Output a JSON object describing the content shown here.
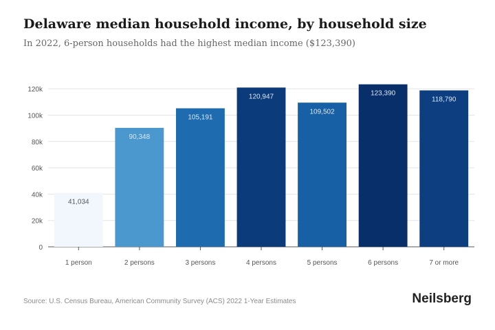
{
  "chart_data": {
    "type": "bar",
    "title": "Delaware median household income, by household size",
    "subtitle": "In 2022, 6-person households had the highest median income ($123,390)",
    "categories": [
      "1 person",
      "2 persons",
      "3 persons",
      "4 persons",
      "5 persons",
      "6 persons",
      "7 or more"
    ],
    "values": [
      41034,
      90348,
      105191,
      120947,
      109502,
      123390,
      118790
    ],
    "value_labels": [
      "41,034",
      "90,348",
      "105,191",
      "120,947",
      "109,502",
      "123,390",
      "118,790"
    ],
    "yticks": [
      0,
      20000,
      40000,
      60000,
      80000,
      100000,
      120000
    ],
    "ytick_labels": [
      "0",
      "20k",
      "40k",
      "60k",
      "80k",
      "100k",
      "120k"
    ],
    "ylim": [
      0,
      130000
    ],
    "grid": true,
    "colors": [
      "#f2f7fd",
      "#4a98cd",
      "#1f6bb0",
      "#0b3b7a",
      "#1760a5",
      "#082f6a",
      "#0c3e80"
    ],
    "xlabel": "",
    "ylabel": ""
  },
  "footer": {
    "source": "Source: U.S. Census Bureau, American Community Survey (ACS) 2022 1-Year Estimates",
    "brand": "Neilsberg"
  }
}
